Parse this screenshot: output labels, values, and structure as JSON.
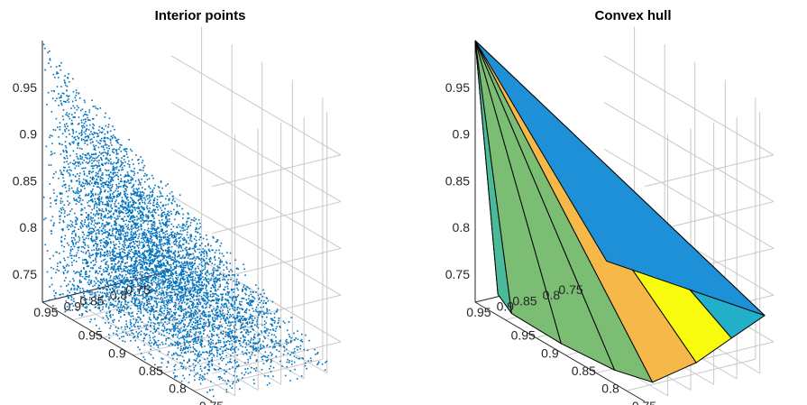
{
  "chart_data": [
    {
      "type": "scatter",
      "title": "Interior points",
      "xlabel": "",
      "ylabel": "",
      "zlabel": "",
      "xlim": [
        0.72,
        1.0
      ],
      "ylim": [
        0.72,
        1.0
      ],
      "zlim": [
        0.72,
        1.0
      ],
      "x_ticks": [
        "0.75",
        "0.8",
        "0.85",
        "0.9",
        "0.95"
      ],
      "y_ticks": [
        "0.75",
        "0.8",
        "0.85",
        "0.9",
        "0.95"
      ],
      "z_ticks": [
        "0.75",
        "0.8",
        "0.85",
        "0.9",
        "0.95"
      ],
      "grid": true,
      "marker_color": "#0072BD",
      "points": {
        "count": 10000,
        "distribution": "sampled from the pyramid with apex (1, 1, 1) above the square base z = 0.72, x, y in [0.72, 1.0]"
      }
    },
    {
      "type": "surface",
      "title": "Convex hull",
      "xlabel": "",
      "ylabel": "",
      "zlabel": "",
      "xlim": [
        0.72,
        1.0
      ],
      "ylim": [
        0.72,
        1.0
      ],
      "zlim": [
        0.72,
        1.0
      ],
      "x_ticks": [
        "0.75",
        "0.8",
        "0.85",
        "0.9",
        "0.95"
      ],
      "y_ticks": [
        "0.75",
        "0.8",
        "0.85",
        "0.9",
        "0.95"
      ],
      "z_ticks": [
        "0.75",
        "0.8",
        "0.85",
        "0.9",
        "0.95"
      ],
      "grid": true,
      "apex": [
        1.0,
        1.0,
        1.0
      ],
      "colormap": [
        "#3E26A8",
        "#2E4FD8",
        "#1E90D8",
        "#21B0C8",
        "#49BB9A",
        "#7CBD74",
        "#F6B848",
        "#F9FB0E"
      ],
      "edge_color": "#000000"
    }
  ]
}
